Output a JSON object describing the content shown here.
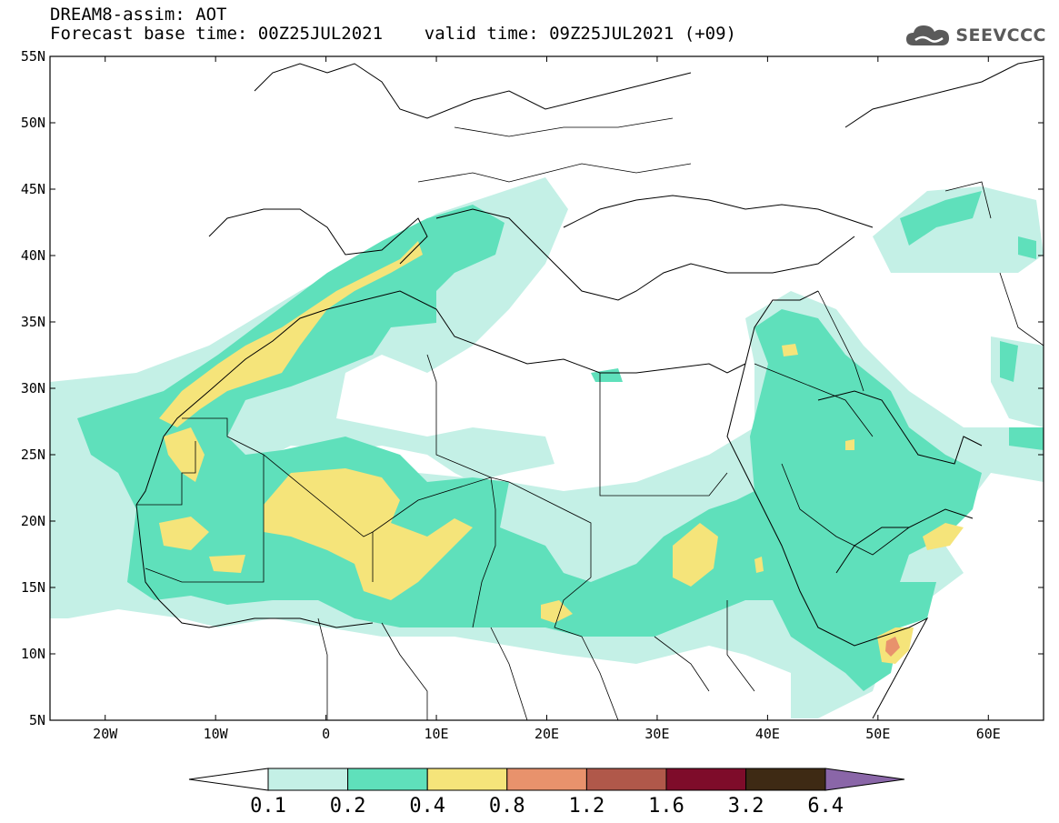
{
  "header": {
    "line1": "DREAM8-assim: AOT",
    "line2": "Forecast base time: 00Z25JUL2021    valid time: 09Z25JUL2021 (+09)"
  },
  "logo": {
    "text": "SEEVCCC",
    "icon": "cloud-icon"
  },
  "map": {
    "lat_labels": [
      "55N",
      "50N",
      "45N",
      "40N",
      "35N",
      "30N",
      "25N",
      "20N",
      "15N",
      "10N",
      "5N"
    ],
    "lon_labels": [
      "20W",
      "10W",
      "0",
      "10E",
      "20E",
      "30E",
      "40E",
      "50E",
      "60E"
    ],
    "lon_range": [
      -25,
      65
    ],
    "lat_range": [
      5,
      55
    ]
  },
  "colorbar": {
    "labels": [
      "0.1",
      "0.2",
      "0.4",
      "0.8",
      "1.2",
      "1.6",
      "3.2",
      "6.4"
    ],
    "colors": [
      "#c4f0e6",
      "#5fe0bb",
      "#f5e47a",
      "#e8926c",
      "#b0584a",
      "#7e0c2a",
      "#3e2a14",
      "#8a66a8"
    ]
  }
}
